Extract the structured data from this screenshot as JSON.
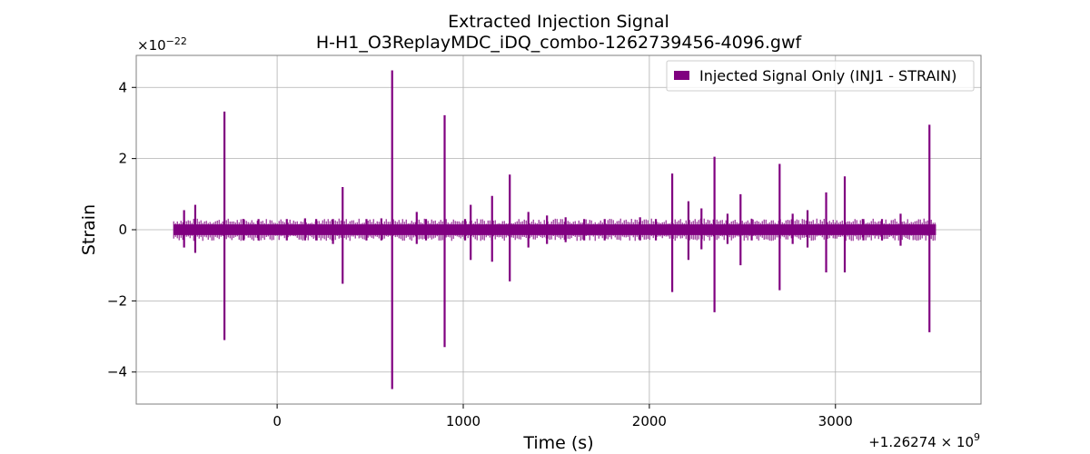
{
  "chart_data": {
    "type": "line",
    "title": "Extracted Injection Signal",
    "subtitle": "H-H1_O3ReplayMDC_iDQ_combo-1262739456-4096.gwf",
    "xlabel": "Time (s)",
    "ylabel": "Strain",
    "x_offset_label": "+1.26274 × 10",
    "x_offset_exponent": "9",
    "y_scale_label": "×10",
    "y_scale_exponent": "−22",
    "xlim": [
      -757,
      3782
    ],
    "ylim": [
      -4.9,
      4.9
    ],
    "xticks": [
      0,
      1000,
      2000,
      3000
    ],
    "xtick_labels": [
      "0",
      "1000",
      "2000",
      "3000"
    ],
    "yticks": [
      -4,
      -2,
      0,
      2,
      4
    ],
    "ytick_labels": [
      "−4",
      "−2",
      "0",
      "2",
      "4"
    ],
    "grid": true,
    "legend_position": "top-right",
    "color": "#800080",
    "series": [
      {
        "name": "Injected Signal Only (INJ1 - STRAIN)",
        "x_range": [
          -556,
          3540
        ],
        "baseline_amplitude": 0.15,
        "spikes": [
          {
            "x": -500,
            "top": 0.55,
            "bottom": -0.5
          },
          {
            "x": -440,
            "top": 0.7,
            "bottom": -0.65
          },
          {
            "x": -283,
            "top": 3.32,
            "bottom": -3.1
          },
          {
            "x": -180,
            "top": 0.3,
            "bottom": -0.3
          },
          {
            "x": -100,
            "top": 0.3,
            "bottom": -0.3
          },
          {
            "x": 52,
            "top": 0.3,
            "bottom": -0.3
          },
          {
            "x": 150,
            "top": 0.32,
            "bottom": -0.3
          },
          {
            "x": 210,
            "top": 0.3,
            "bottom": -0.3
          },
          {
            "x": 300,
            "top": 0.3,
            "bottom": -0.4
          },
          {
            "x": 352,
            "top": 1.2,
            "bottom": -1.52
          },
          {
            "x": 480,
            "top": 0.3,
            "bottom": -0.3
          },
          {
            "x": 560,
            "top": 0.32,
            "bottom": -0.3
          },
          {
            "x": 618,
            "top": 4.48,
            "bottom": -4.48
          },
          {
            "x": 750,
            "top": 0.5,
            "bottom": -0.4
          },
          {
            "x": 800,
            "top": 0.3,
            "bottom": -0.3
          },
          {
            "x": 900,
            "top": 3.22,
            "bottom": -3.3
          },
          {
            "x": 1010,
            "top": 0.3,
            "bottom": -0.3
          },
          {
            "x": 1040,
            "top": 0.7,
            "bottom": -0.85
          },
          {
            "x": 1155,
            "top": 0.95,
            "bottom": -0.9
          },
          {
            "x": 1250,
            "top": 1.55,
            "bottom": -1.45
          },
          {
            "x": 1350,
            "top": 0.5,
            "bottom": -0.5
          },
          {
            "x": 1450,
            "top": 0.4,
            "bottom": -0.4
          },
          {
            "x": 1550,
            "top": 0.35,
            "bottom": -0.35
          },
          {
            "x": 1650,
            "top": 0.3,
            "bottom": -0.3
          },
          {
            "x": 1760,
            "top": 0.3,
            "bottom": -0.3
          },
          {
            "x": 1950,
            "top": 0.35,
            "bottom": -0.3
          },
          {
            "x": 2035,
            "top": 0.3,
            "bottom": -0.3
          },
          {
            "x": 2123,
            "top": 1.58,
            "bottom": -1.75
          },
          {
            "x": 2210,
            "top": 0.8,
            "bottom": -0.85
          },
          {
            "x": 2280,
            "top": 0.6,
            "bottom": -0.55
          },
          {
            "x": 2350,
            "top": 2.05,
            "bottom": -2.32
          },
          {
            "x": 2420,
            "top": 0.45,
            "bottom": -0.4
          },
          {
            "x": 2490,
            "top": 1.0,
            "bottom": -1.0
          },
          {
            "x": 2550,
            "top": 0.3,
            "bottom": -0.3
          },
          {
            "x": 2700,
            "top": 1.85,
            "bottom": -1.7
          },
          {
            "x": 2770,
            "top": 0.45,
            "bottom": -0.4
          },
          {
            "x": 2850,
            "top": 0.55,
            "bottom": -0.5
          },
          {
            "x": 2950,
            "top": 1.05,
            "bottom": -1.2
          },
          {
            "x": 3050,
            "top": 1.5,
            "bottom": -1.2
          },
          {
            "x": 3150,
            "top": 0.3,
            "bottom": -0.3
          },
          {
            "x": 3250,
            "top": 0.3,
            "bottom": -0.3
          },
          {
            "x": 3350,
            "top": 0.45,
            "bottom": -0.45
          },
          {
            "x": 3505,
            "top": 2.95,
            "bottom": -2.88
          }
        ]
      }
    ]
  }
}
